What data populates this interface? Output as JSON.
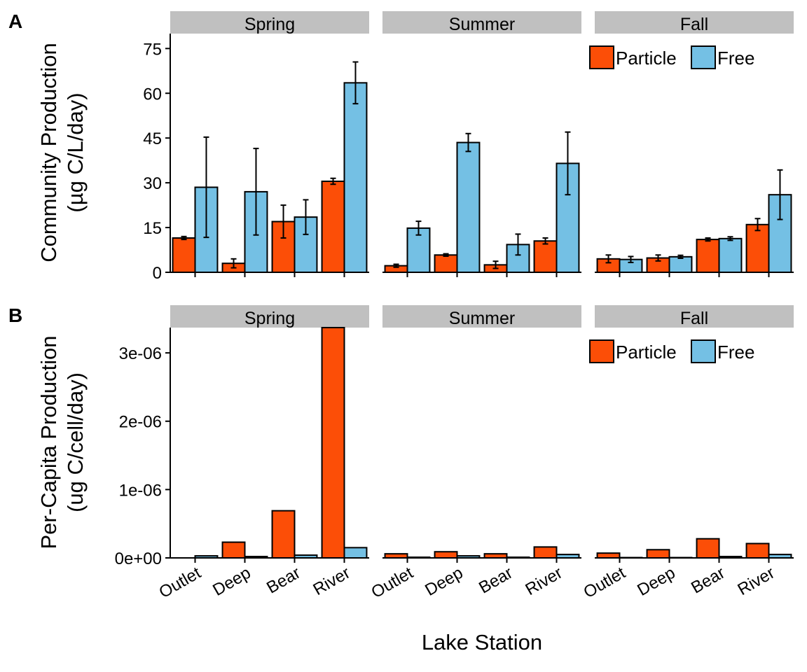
{
  "colors": {
    "particle": "#FC4E07",
    "free": "#74C0E4",
    "strip": "#C0C0C0"
  },
  "legend": {
    "particle": "Particle",
    "free": "Free"
  },
  "xlabel": "Lake Station",
  "chart_data": [
    {
      "panel": "A",
      "type": "bar",
      "ylabel_line1": "Community Production",
      "ylabel_line2": "(µg C/L/day)",
      "ylim": [
        0,
        80
      ],
      "yticks": [
        0,
        15,
        30,
        45,
        60,
        75
      ],
      "ytick_labels": [
        "0",
        "15",
        "30",
        "45",
        "60",
        "75"
      ],
      "legend_position": "top-right of Fall panel",
      "categories": [
        "Outlet",
        "Deep",
        "Bear",
        "River"
      ],
      "facets": [
        {
          "season": "Spring",
          "series": [
            {
              "name": "Particle",
              "values": [
                11.5,
                3.0,
                17.0,
                30.5
              ],
              "err": [
                0.5,
                1.5,
                5.5,
                1.0
              ]
            },
            {
              "name": "Free",
              "values": [
                28.5,
                27.0,
                18.5,
                63.5
              ],
              "err": [
                16.8,
                14.5,
                5.8,
                7.0
              ]
            }
          ]
        },
        {
          "season": "Summer",
          "series": [
            {
              "name": "Particle",
              "values": [
                2.2,
                5.8,
                2.5,
                10.5
              ],
              "err": [
                0.5,
                0.4,
                1.2,
                1.0
              ]
            },
            {
              "name": "Free",
              "values": [
                14.8,
                43.5,
                9.3,
                36.5
              ],
              "err": [
                2.3,
                3.0,
                3.5,
                10.5
              ]
            }
          ]
        },
        {
          "season": "Fall",
          "series": [
            {
              "name": "Particle",
              "values": [
                4.5,
                4.8,
                11.0,
                16.0
              ],
              "err": [
                1.3,
                1.0,
                0.5,
                2.0
              ]
            },
            {
              "name": "Free",
              "values": [
                4.3,
                5.2,
                11.3,
                26.0
              ],
              "err": [
                1.0,
                0.5,
                0.6,
                8.3
              ]
            }
          ]
        }
      ]
    },
    {
      "panel": "B",
      "type": "bar",
      "ylabel_line1": "Per-Capita Production",
      "ylabel_line2": "(ug C/cell/day)",
      "ylim": [
        0,
        3.37e-06
      ],
      "yticks": [
        0,
        1e-06,
        2e-06,
        3e-06
      ],
      "ytick_labels": [
        "0e+00",
        "1e-06",
        "2e-06",
        "3e-06"
      ],
      "legend_position": "top-right of Fall panel",
      "categories": [
        "Outlet",
        "Deep",
        "Bear",
        "River"
      ],
      "facets": [
        {
          "season": "Spring",
          "series": [
            {
              "name": "Particle",
              "values": [
                0,
                2.3e-07,
                6.9e-07,
                3.37e-06
              ]
            },
            {
              "name": "Free",
              "values": [
                3e-08,
                2e-08,
                4e-08,
                1.5e-07
              ]
            }
          ]
        },
        {
          "season": "Summer",
          "series": [
            {
              "name": "Particle",
              "values": [
                6e-08,
                9e-08,
                6e-08,
                1.6e-07
              ]
            },
            {
              "name": "Free",
              "values": [
                1e-08,
                3e-08,
                1e-08,
                5e-08
              ]
            }
          ]
        },
        {
          "season": "Fall",
          "series": [
            {
              "name": "Particle",
              "values": [
                7e-08,
                1.2e-07,
                2.8e-07,
                2.1e-07
              ]
            },
            {
              "name": "Free",
              "values": [
                5e-09,
                5e-09,
                2e-08,
                5e-08
              ]
            }
          ]
        }
      ]
    }
  ]
}
